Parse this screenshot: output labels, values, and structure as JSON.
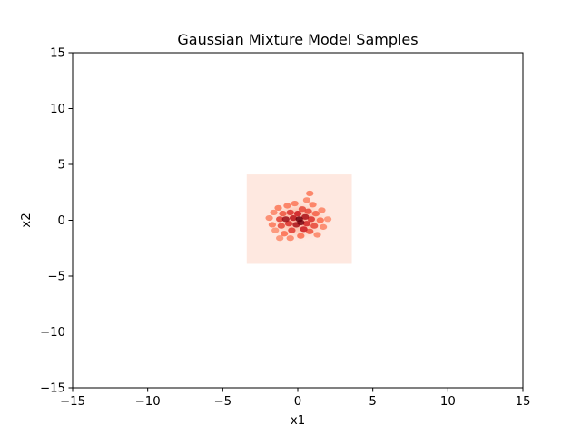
{
  "chart_data": {
    "type": "heatmap",
    "title": "Gaussian Mixture Model Samples",
    "xlabel": "x1",
    "ylabel": "x2",
    "xlim": [
      -15,
      15
    ],
    "ylim": [
      -15,
      15
    ],
    "xticks": [
      -15,
      -10,
      -5,
      0,
      5,
      10,
      15
    ],
    "yticks": [
      -15,
      -10,
      -5,
      0,
      5,
      10,
      15
    ],
    "xtick_labels": [
      "−15",
      "−10",
      "−5",
      "0",
      "5",
      "10",
      "15"
    ],
    "ytick_labels": [
      "−15",
      "−10",
      "−5",
      "0",
      "5",
      "10",
      "15"
    ],
    "grid": false,
    "colormap": "Reds",
    "colors": {
      "background_extent": "#fee8e0",
      "low": "#fcbba1",
      "mid": "#fb6a4a",
      "high": "#cb181d",
      "peak": "#67000d",
      "axis": "#000000"
    },
    "density_extent": {
      "x": [
        -3.4,
        3.6
      ],
      "y": [
        -3.9,
        4.1
      ]
    },
    "density_center": [
      0.1,
      0.0
    ],
    "density_spread": [
      1.0,
      0.9
    ],
    "cells": [
      {
        "x": -1.9,
        "y": 0.2,
        "v": 0.25
      },
      {
        "x": -1.7,
        "y": -0.4,
        "v": 0.3
      },
      {
        "x": -1.6,
        "y": 0.7,
        "v": 0.25
      },
      {
        "x": -1.5,
        "y": -0.9,
        "v": 0.2
      },
      {
        "x": -1.3,
        "y": 1.1,
        "v": 0.3
      },
      {
        "x": -1.2,
        "y": 0.1,
        "v": 0.55
      },
      {
        "x": -1.1,
        "y": -0.5,
        "v": 0.5
      },
      {
        "x": -1.0,
        "y": 0.6,
        "v": 0.45
      },
      {
        "x": -0.9,
        "y": -1.2,
        "v": 0.35
      },
      {
        "x": -0.8,
        "y": 0.1,
        "v": 0.85
      },
      {
        "x": -0.7,
        "y": 1.3,
        "v": 0.3
      },
      {
        "x": -0.6,
        "y": -0.3,
        "v": 0.6
      },
      {
        "x": -0.5,
        "y": 0.7,
        "v": 0.6
      },
      {
        "x": -0.4,
        "y": -0.9,
        "v": 0.55
      },
      {
        "x": -0.3,
        "y": 0.2,
        "v": 0.75
      },
      {
        "x": -0.2,
        "y": 1.5,
        "v": 0.3
      },
      {
        "x": -0.1,
        "y": -0.4,
        "v": 0.8
      },
      {
        "x": 0.0,
        "y": 0.6,
        "v": 0.7
      },
      {
        "x": 0.1,
        "y": 0.1,
        "v": 1.0
      },
      {
        "x": 0.2,
        "y": -0.2,
        "v": 0.95
      },
      {
        "x": 0.2,
        "y": -1.4,
        "v": 0.35
      },
      {
        "x": 0.3,
        "y": 1.0,
        "v": 0.5
      },
      {
        "x": 0.4,
        "y": -0.8,
        "v": 0.7
      },
      {
        "x": 0.5,
        "y": 0.3,
        "v": 0.8
      },
      {
        "x": 0.6,
        "y": -0.3,
        "v": 0.65
      },
      {
        "x": 0.7,
        "y": 0.8,
        "v": 0.5
      },
      {
        "x": 0.8,
        "y": -1.0,
        "v": 0.45
      },
      {
        "x": 0.8,
        "y": 2.4,
        "v": 0.3
      },
      {
        "x": 0.9,
        "y": 0.1,
        "v": 0.6
      },
      {
        "x": 1.0,
        "y": 1.4,
        "v": 0.3
      },
      {
        "x": 1.1,
        "y": -0.5,
        "v": 0.5
      },
      {
        "x": 1.2,
        "y": 0.6,
        "v": 0.4
      },
      {
        "x": 1.3,
        "y": -1.3,
        "v": 0.25
      },
      {
        "x": 1.5,
        "y": 0.0,
        "v": 0.35
      },
      {
        "x": 1.6,
        "y": 0.9,
        "v": 0.25
      },
      {
        "x": 1.7,
        "y": -0.6,
        "v": 0.25
      },
      {
        "x": 2.0,
        "y": 0.1,
        "v": 0.2
      },
      {
        "x": -0.5,
        "y": -1.6,
        "v": 0.25
      },
      {
        "x": -1.2,
        "y": -1.6,
        "v": 0.2
      },
      {
        "x": 0.6,
        "y": 1.8,
        "v": 0.25
      }
    ]
  }
}
